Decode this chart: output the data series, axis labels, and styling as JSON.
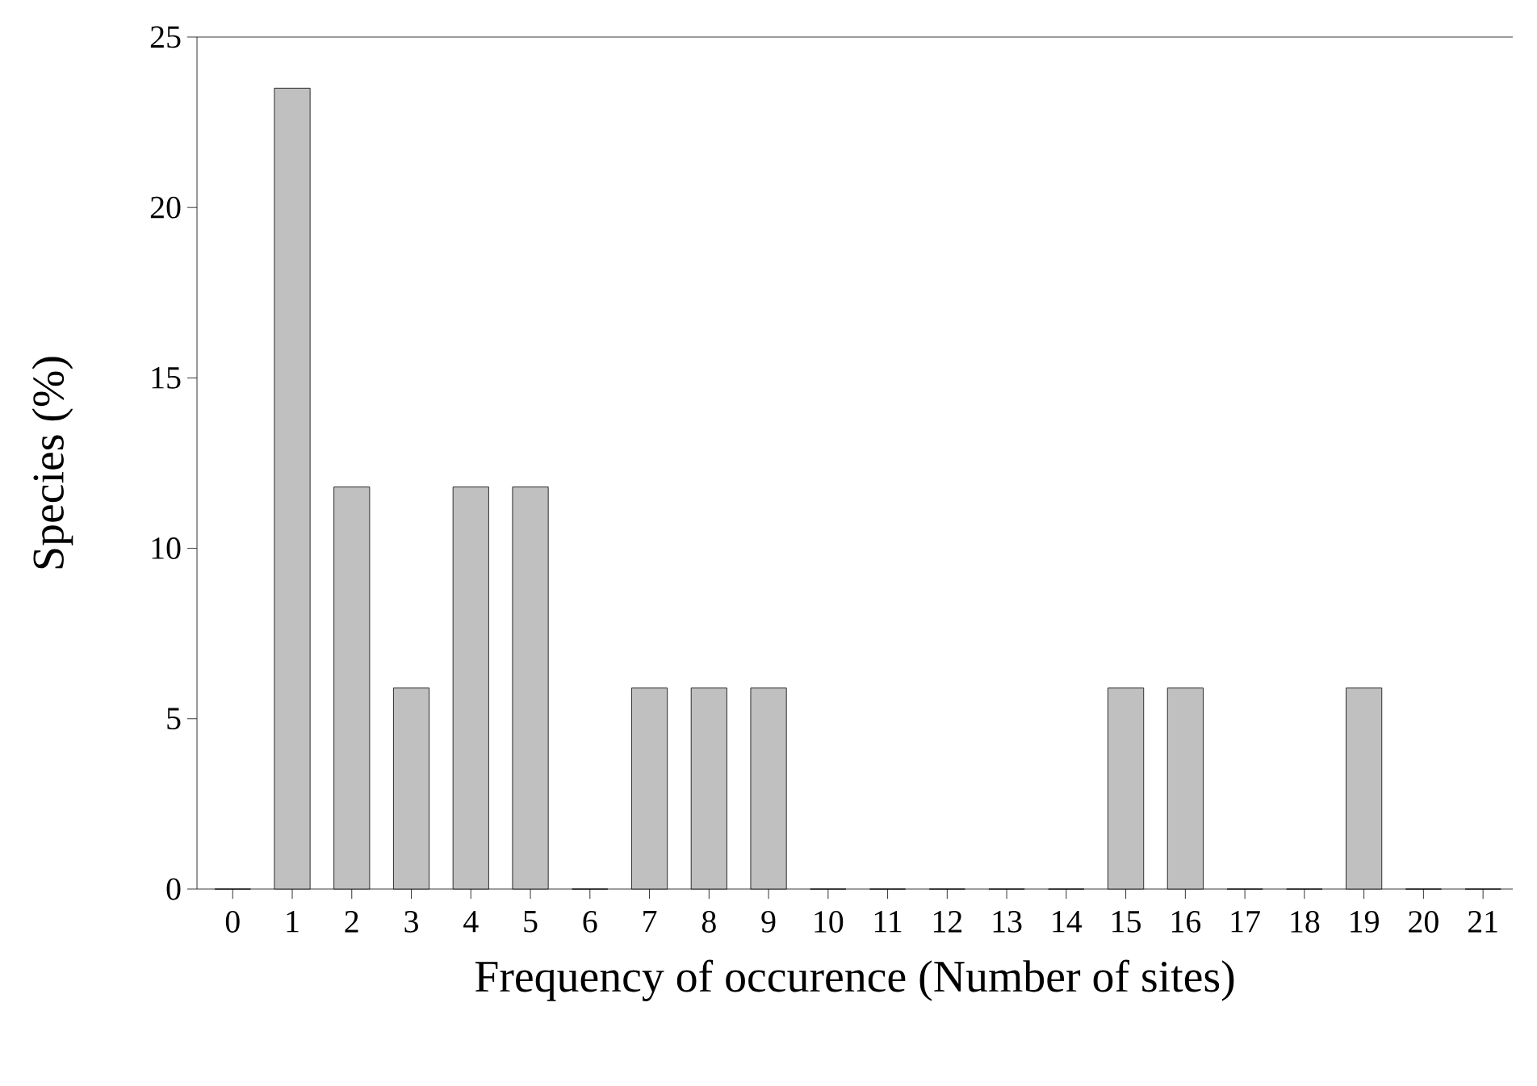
{
  "chart_data": {
    "type": "bar",
    "xlabel": "Frequency of occurence (Number of sites)",
    "ylabel": "Species (%)",
    "categories": [
      "0",
      "1",
      "2",
      "3",
      "4",
      "5",
      "6",
      "7",
      "8",
      "9",
      "10",
      "11",
      "12",
      "13",
      "14",
      "15",
      "16",
      "17",
      "18",
      "19",
      "20",
      "21"
    ],
    "values": [
      0,
      23.5,
      11.8,
      5.9,
      11.8,
      11.8,
      0,
      5.9,
      5.9,
      5.9,
      0,
      0,
      0,
      0,
      0,
      5.9,
      5.9,
      0,
      0,
      5.9,
      0,
      0
    ],
    "color": "#c0c0c0",
    "ylim": [
      0,
      25
    ],
    "yticks": [
      0,
      5,
      10,
      15,
      20,
      25
    ]
  }
}
